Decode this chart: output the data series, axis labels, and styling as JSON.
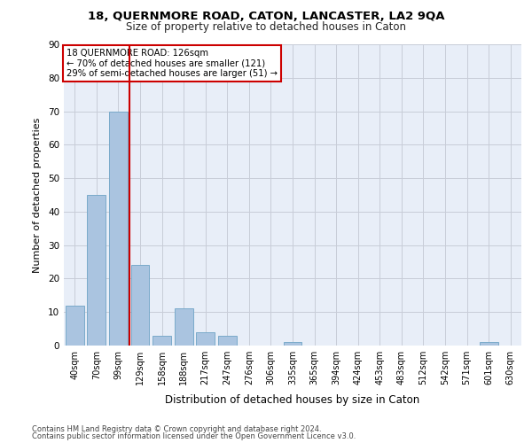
{
  "title1": "18, QUERNMORE ROAD, CATON, LANCASTER, LA2 9QA",
  "title2": "Size of property relative to detached houses in Caton",
  "xlabel": "Distribution of detached houses by size in Caton",
  "ylabel": "Number of detached properties",
  "bar_labels": [
    "40sqm",
    "70sqm",
    "99sqm",
    "129sqm",
    "158sqm",
    "188sqm",
    "217sqm",
    "247sqm",
    "276sqm",
    "306sqm",
    "335sqm",
    "365sqm",
    "394sqm",
    "424sqm",
    "453sqm",
    "483sqm",
    "512sqm",
    "542sqm",
    "571sqm",
    "601sqm",
    "630sqm"
  ],
  "bar_values": [
    12,
    45,
    70,
    24,
    3,
    11,
    4,
    3,
    0,
    0,
    1,
    0,
    0,
    0,
    0,
    0,
    0,
    0,
    0,
    1,
    0
  ],
  "bar_color": "#aac4e0",
  "bar_edge_color": "#7aaaca",
  "vline_color": "#cc0000",
  "annotation_title": "18 QUERNMORE ROAD: 126sqm",
  "annotation_line1": "← 70% of detached houses are smaller (121)",
  "annotation_line2": "29% of semi-detached houses are larger (51) →",
  "annotation_box_color": "#cc0000",
  "ylim": [
    0,
    90
  ],
  "yticks": [
    0,
    10,
    20,
    30,
    40,
    50,
    60,
    70,
    80,
    90
  ],
  "background_color": "#e8eef8",
  "footer1": "Contains HM Land Registry data © Crown copyright and database right 2024.",
  "footer2": "Contains public sector information licensed under the Open Government Licence v3.0."
}
